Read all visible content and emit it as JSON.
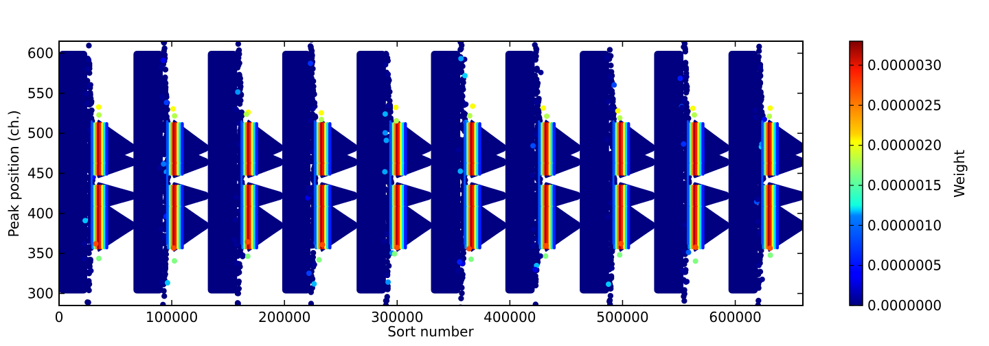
{
  "chart_data": {
    "type": "scatter",
    "title": "",
    "xlabel": "Sort number",
    "ylabel": "Peak position (ch.)",
    "xlim": [
      0,
      660000
    ],
    "ylim": [
      285,
      615
    ],
    "xticks": [
      0,
      100000,
      200000,
      300000,
      400000,
      500000,
      600000
    ],
    "xtick_labels": [
      "0",
      "100000",
      "200000",
      "300000",
      "400000",
      "500000",
      "600000"
    ],
    "yticks": [
      300,
      350,
      400,
      450,
      500,
      550,
      600
    ],
    "ytick_labels": [
      "300",
      "350",
      "400",
      "450",
      "500",
      "550",
      "600"
    ],
    "grid": false,
    "colorbar": {
      "label": "Weight",
      "colormap": "jet",
      "range": [
        0,
        3.3e-06
      ],
      "ticks": [
        0,
        5e-07,
        1e-06,
        1.5e-06,
        2e-06,
        2.5e-06,
        3e-06
      ],
      "tick_labels": [
        "0.0000000",
        "0.0000005",
        "0.0000010",
        "0.0000015",
        "0.0000020",
        "0.0000025",
        "0.0000030"
      ]
    },
    "cycles": [
      {
        "start": 0,
        "spread_end": 25000,
        "peak_start": 28000,
        "peak_center": 35000,
        "branch_end": 65000
      },
      {
        "start": 66000,
        "spread_end": 92000,
        "peak_start": 95000,
        "peak_center": 102000,
        "branch_end": 130000
      },
      {
        "start": 132000,
        "spread_end": 158000,
        "peak_start": 161000,
        "peak_center": 168000,
        "branch_end": 196000
      },
      {
        "start": 198000,
        "spread_end": 223000,
        "peak_start": 226000,
        "peak_center": 233000,
        "branch_end": 262000
      },
      {
        "start": 264000,
        "spread_end": 290000,
        "peak_start": 293000,
        "peak_center": 300000,
        "branch_end": 328000
      },
      {
        "start": 330000,
        "spread_end": 356000,
        "peak_start": 359000,
        "peak_center": 366000,
        "branch_end": 394000
      },
      {
        "start": 396000,
        "spread_end": 422000,
        "peak_start": 425000,
        "peak_center": 432000,
        "branch_end": 460000
      },
      {
        "start": 462000,
        "spread_end": 488000,
        "peak_start": 491000,
        "peak_center": 498000,
        "branch_end": 526000
      },
      {
        "start": 528000,
        "spread_end": 554000,
        "peak_start": 557000,
        "peak_center": 564000,
        "branch_end": 592000
      },
      {
        "start": 594000,
        "spread_end": 620000,
        "peak_start": 623000,
        "peak_center": 630000,
        "branch_end": 660000
      }
    ],
    "spread_y_range": [
      300,
      603
    ],
    "peak_bands": [
      {
        "y": 385,
        "half_width": 28,
        "branch_y": 385
      },
      {
        "y": 422,
        "half_width": 12,
        "branch_y": 422
      },
      {
        "y": 465,
        "half_width": 16,
        "branch_y": 464
      },
      {
        "y": 488,
        "half_width": 24,
        "branch_y": 482
      }
    ],
    "peak_weight_max": 3.3e-06
  }
}
